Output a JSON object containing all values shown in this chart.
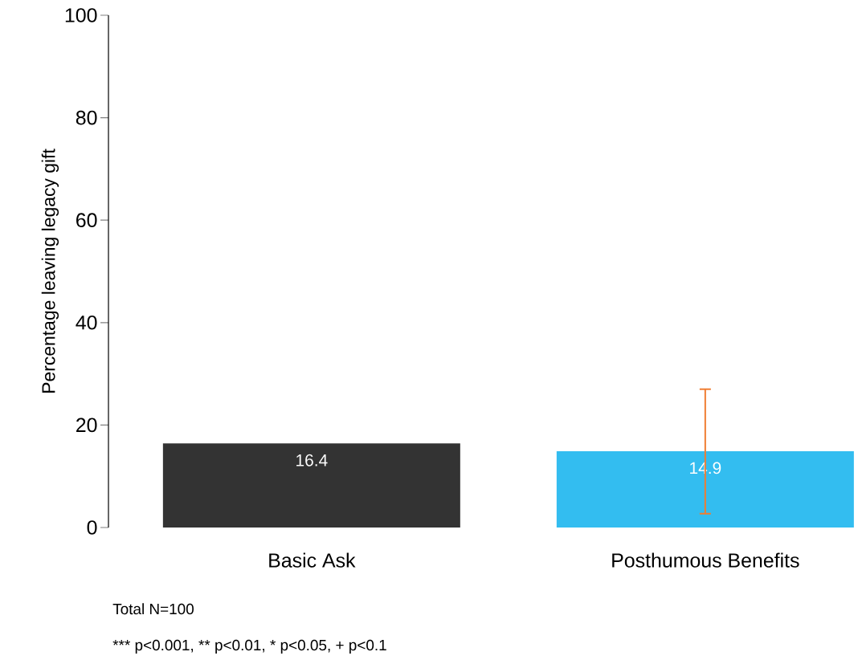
{
  "chart_data": {
    "type": "bar",
    "ylabel": "Percentage leaving legacy gift",
    "categories": [
      "Basic Ask",
      "Posthumous Benefits"
    ],
    "values": [
      16.4,
      14.9
    ],
    "colors": [
      "#333333",
      "#33bdf0"
    ],
    "errors": [
      null,
      [
        2.7,
        27.0
      ]
    ],
    "ylim": [
      0,
      100
    ],
    "yticks": [
      0,
      20,
      40,
      60,
      80,
      100
    ],
    "data_labels": true,
    "annotations": [
      "Total N=100",
      "*** p<0.001, ** p<0.01,  * p<0.05, + p<0.1"
    ]
  }
}
